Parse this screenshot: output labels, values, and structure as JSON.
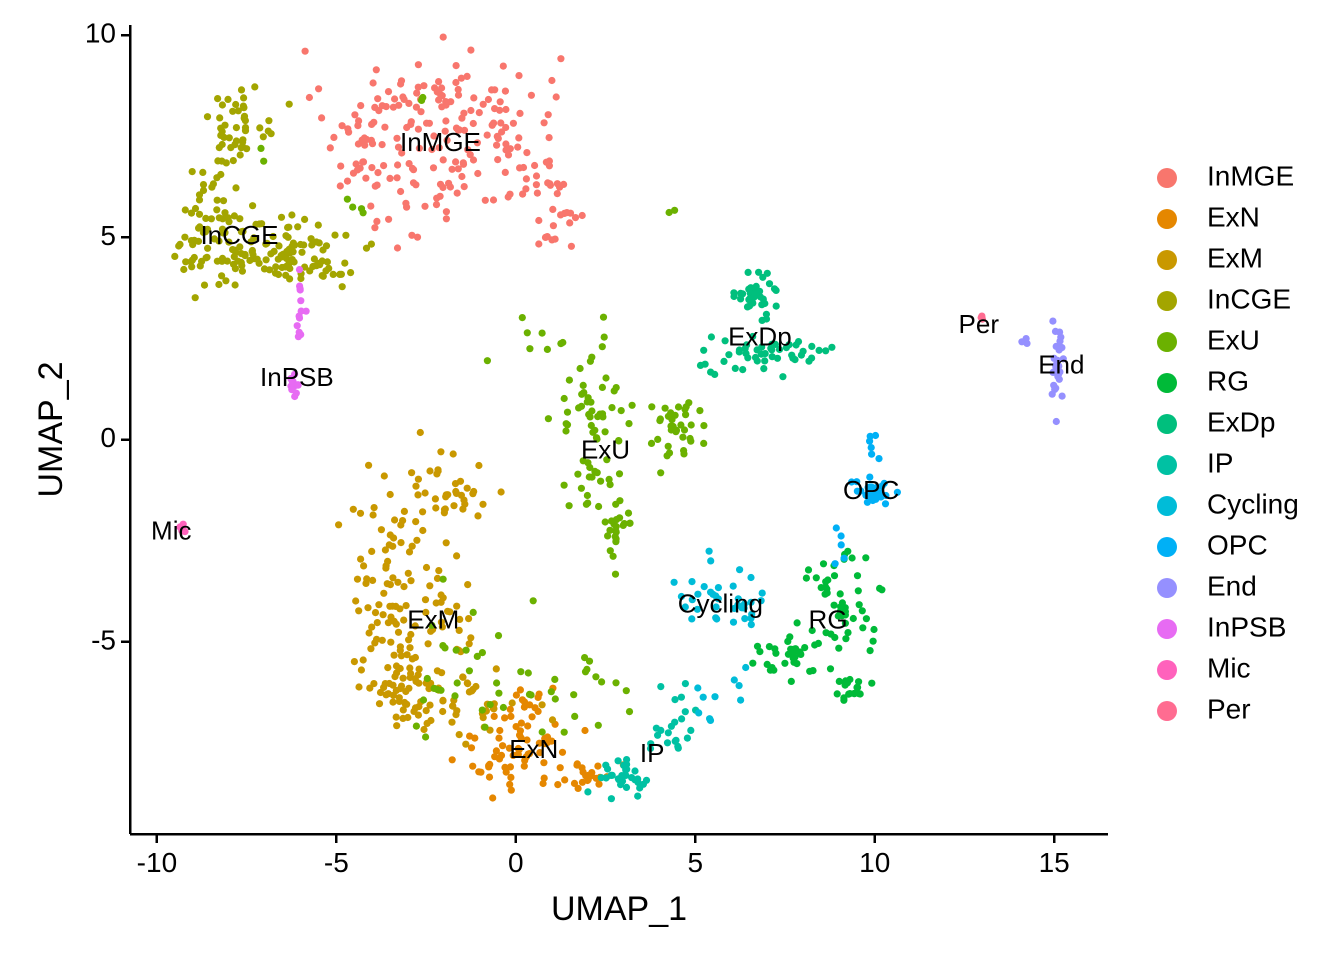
{
  "chart_data": {
    "type": "scatter",
    "title": "",
    "xlabel": "UMAP_1",
    "ylabel": "UMAP_2",
    "xlim": [
      -10.75,
      16.5
    ],
    "ylim": [
      -9.75,
      10.25
    ],
    "xticks": [
      -10,
      -5,
      0,
      5,
      10,
      15
    ],
    "xtick_labels": [
      "-10",
      "-5",
      "0",
      "5",
      "10",
      "15"
    ],
    "yticks": [
      -5,
      0,
      5,
      10
    ],
    "ytick_labels": [
      "-5",
      "0",
      "5",
      "10"
    ],
    "grid": false,
    "legend_position": "right",
    "clusters": [
      {
        "name": "InMGE",
        "color": "#F8766D",
        "label": "InMGE",
        "label_x": -2.1,
        "label_y": 7.3,
        "regions": [
          [
            -2.0,
            8.2,
            2.0,
            0.9,
            110
          ],
          [
            -4.2,
            7.3,
            0.5,
            0.9,
            35
          ],
          [
            -1.5,
            6.5,
            1.5,
            0.7,
            45
          ],
          [
            1.0,
            6.2,
            0.6,
            0.8,
            20
          ],
          [
            1.2,
            5.0,
            0.4,
            0.5,
            10
          ],
          [
            -3.0,
            5.5,
            0.6,
            0.6,
            8
          ]
        ]
      },
      {
        "name": "ExN",
        "color": "#E58700",
        "label": "ExN",
        "label_x": 0.5,
        "label_y": -7.7,
        "regions": [
          [
            0.3,
            -7.4,
            0.8,
            0.8,
            65
          ],
          [
            2.0,
            -8.3,
            0.6,
            0.3,
            20
          ],
          [
            -0.8,
            -8.1,
            0.5,
            0.3,
            12
          ]
        ]
      },
      {
        "name": "ExM",
        "color": "#C99800",
        "label": "ExM",
        "label_x": -2.3,
        "label_y": -4.5,
        "regions": [
          [
            -2.2,
            -1.5,
            1.2,
            0.8,
            50
          ],
          [
            -3.5,
            -4.0,
            0.7,
            1.5,
            70
          ],
          [
            -3.2,
            -6.0,
            0.6,
            0.6,
            35
          ],
          [
            -1.8,
            -6.5,
            1.2,
            0.6,
            55
          ],
          [
            -2.0,
            -4.5,
            0.8,
            1.0,
            30
          ]
        ]
      },
      {
        "name": "InCGE",
        "color": "#A3A500",
        "label": "InCGE",
        "label_x": -7.7,
        "label_y": 5.0,
        "regions": [
          [
            -7.7,
            7.8,
            0.6,
            0.6,
            45
          ],
          [
            -8.5,
            5.6,
            0.5,
            0.8,
            35
          ],
          [
            -7.2,
            4.7,
            1.4,
            0.6,
            110
          ],
          [
            -5.6,
            4.4,
            0.8,
            0.4,
            30
          ]
        ]
      },
      {
        "name": "ExU",
        "color": "#6BB100",
        "label": "ExU",
        "label_x": 2.5,
        "label_y": -0.3,
        "regions": [
          [
            2.2,
            0.8,
            0.7,
            0.6,
            40
          ],
          [
            4.5,
            0.3,
            0.6,
            0.5,
            35
          ],
          [
            2.8,
            -2.2,
            0.3,
            0.6,
            25
          ],
          [
            2.0,
            -1.0,
            0.6,
            0.4,
            18
          ],
          [
            -1.0,
            -5.8,
            1.0,
            1.2,
            30
          ],
          [
            1.5,
            -6.5,
            1.5,
            0.8,
            18
          ],
          [
            1.0,
            2.5,
            1.2,
            0.6,
            12
          ],
          [
            -7.0,
            6.8,
            0.3,
            0.3,
            2
          ],
          [
            -4.5,
            5.8,
            0.4,
            0.6,
            4
          ],
          [
            4.2,
            5.7,
            0.2,
            0.1,
            2
          ],
          [
            -2.3,
            8.5,
            0.2,
            0.2,
            2
          ]
        ]
      },
      {
        "name": "RG",
        "color": "#00BA38",
        "label": "RG",
        "label_x": 8.7,
        "label_y": -4.5,
        "regions": [
          [
            8.8,
            -3.5,
            0.6,
            0.4,
            25
          ],
          [
            9.3,
            -4.5,
            0.4,
            0.6,
            20
          ],
          [
            9.3,
            -6.2,
            0.3,
            0.25,
            18
          ],
          [
            7.6,
            -5.5,
            0.7,
            0.4,
            25
          ],
          [
            8.2,
            -4.8,
            0.4,
            0.4,
            12
          ]
        ]
      },
      {
        "name": "ExDp",
        "color": "#00BF7D",
        "label": "ExDp",
        "label_x": 6.8,
        "label_y": 2.5,
        "regions": [
          [
            6.7,
            3.6,
            0.35,
            0.3,
            35
          ],
          [
            7.5,
            2.1,
            0.9,
            0.3,
            30
          ],
          [
            6.1,
            2.3,
            0.5,
            0.5,
            15
          ],
          [
            5.5,
            1.7,
            0.2,
            0.1,
            4
          ]
        ]
      },
      {
        "name": "IP",
        "color": "#00C1A3",
        "label": "IP",
        "label_x": 3.8,
        "label_y": -7.8,
        "regions": [
          [
            3.0,
            -8.3,
            0.5,
            0.3,
            30
          ],
          [
            4.4,
            -7.0,
            0.4,
            0.5,
            22
          ]
        ]
      },
      {
        "name": "Cycling",
        "color": "#00BCD8",
        "label": "Cycling",
        "label_x": 5.7,
        "label_y": -4.1,
        "regions": [
          [
            5.5,
            -3.8,
            0.7,
            0.5,
            22
          ],
          [
            6.4,
            -4.2,
            0.4,
            0.5,
            14
          ],
          [
            5.8,
            -6.3,
            0.5,
            0.5,
            10
          ]
        ]
      },
      {
        "name": "OPC",
        "color": "#00B0F6",
        "label": "OPC",
        "label_x": 9.9,
        "label_y": -1.3,
        "regions": [
          [
            9.9,
            -1.3,
            0.35,
            0.2,
            30
          ],
          [
            10.0,
            -0.2,
            0.15,
            0.35,
            6
          ],
          [
            9.1,
            -2.5,
            0.15,
            0.35,
            5
          ]
        ]
      },
      {
        "name": "End",
        "color": "#9590FF",
        "label": "End",
        "label_x": 15.2,
        "label_y": 1.8,
        "regions": [
          [
            15.1,
            1.9,
            0.1,
            0.6,
            30
          ],
          [
            14.2,
            2.4,
            0.1,
            0.08,
            3
          ]
        ]
      },
      {
        "name": "InPSB",
        "color": "#E76BF3",
        "label": "InPSB",
        "label_x": -6.1,
        "label_y": 1.5,
        "regions": [
          [
            -6.0,
            2.7,
            0.1,
            0.6,
            10
          ],
          [
            -6.2,
            1.3,
            0.1,
            0.2,
            12
          ],
          [
            -6.0,
            3.8,
            0.05,
            0.1,
            3
          ]
        ]
      },
      {
        "name": "Mic",
        "color": "#FF62BC",
        "label": "Mic",
        "label_x": -9.6,
        "label_y": -2.3,
        "regions": [
          [
            -9.3,
            -2.25,
            0.06,
            0.06,
            6
          ]
        ]
      },
      {
        "name": "Per",
        "color": "#FF6C91",
        "label": "Per",
        "label_x": 12.9,
        "label_y": 2.8,
        "regions": [
          [
            13.0,
            3.0,
            0.05,
            0.07,
            4
          ]
        ]
      }
    ]
  }
}
